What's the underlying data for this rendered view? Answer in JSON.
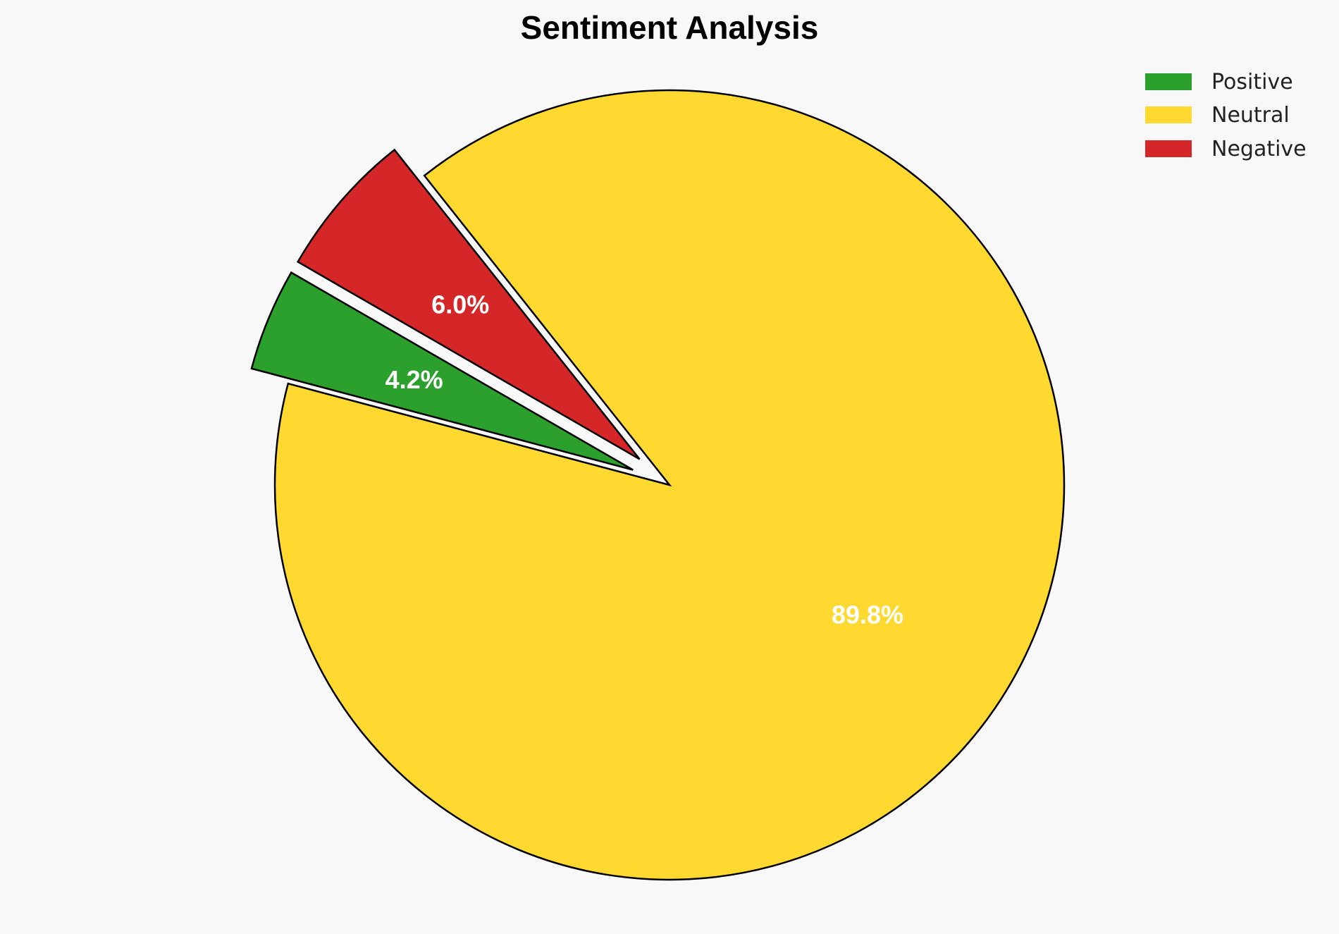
{
  "chart_data": {
    "type": "pie",
    "title": "Sentiment Analysis",
    "legend_position": "top-right",
    "slices": [
      {
        "name": "Positive",
        "value": 4.2,
        "label": "4.2%",
        "color": "#2ca02c",
        "exploded": true
      },
      {
        "name": "Neutral",
        "value": 89.8,
        "label": "89.8%",
        "color": "#ffd92f",
        "exploded": false
      },
      {
        "name": "Negative",
        "value": 6.0,
        "label": "6.0%",
        "color": "#d62728",
        "exploded": true
      }
    ],
    "edge_color": "#000000",
    "label_color": "#ffffff"
  }
}
